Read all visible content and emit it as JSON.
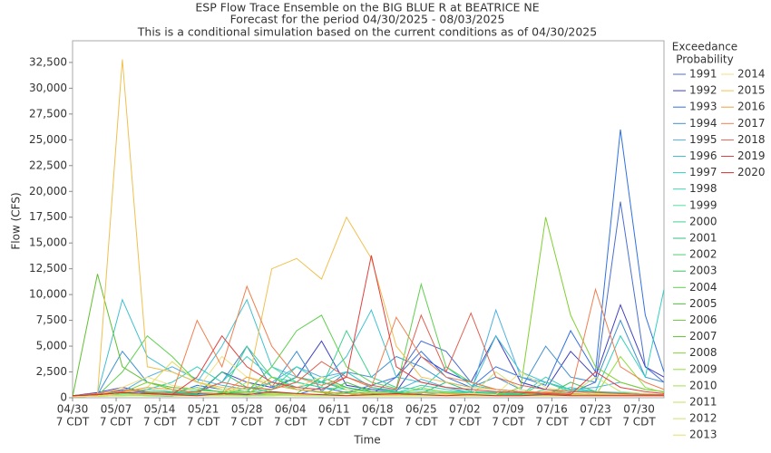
{
  "chart_data": {
    "type": "line",
    "title": "ESP Flow Trace Ensemble on the BIG BLUE R at BEATRICE NE",
    "subtitle": "Forecast for the period 04/30/2025 - 08/03/2025",
    "subtitle2": "This is a conditional simulation based on the current conditions as of 04/30/2025",
    "x_label": "Time",
    "y_label": "Flow (CFS)",
    "legend_title": [
      "Exceedance",
      "Probability"
    ],
    "xtick_sublabel": "7 CDT",
    "x": [
      "04/30",
      "05/04",
      "05/08",
      "05/12",
      "05/16",
      "05/20",
      "05/24",
      "05/28",
      "06/01",
      "06/05",
      "06/09",
      "06/13",
      "06/17",
      "06/21",
      "06/25",
      "06/29",
      "07/03",
      "07/07",
      "07/11",
      "07/15",
      "07/19",
      "07/23",
      "07/27",
      "07/31",
      "08/03"
    ],
    "xlim": [
      "04/30",
      "08/03"
    ],
    "xticks": [
      "04/30",
      "05/07",
      "05/14",
      "05/21",
      "05/28",
      "06/04",
      "06/11",
      "06/18",
      "06/25",
      "07/02",
      "07/09",
      "07/16",
      "07/23",
      "07/30"
    ],
    "ylim": [
      0,
      34600
    ],
    "yticks": [
      0,
      {
        "value": 2500,
        "label": "2,500"
      },
      {
        "value": 5000,
        "label": "5,000"
      },
      {
        "value": 7500,
        "label": "7,500"
      },
      {
        "value": 10000,
        "label": "10,000"
      },
      {
        "value": 12500,
        "label": "12,500"
      },
      {
        "value": 15000,
        "label": "15,000"
      },
      {
        "value": 17500,
        "label": "17,500"
      },
      {
        "value": 20000,
        "label": "20,000"
      },
      {
        "value": 22500,
        "label": "22,500"
      },
      {
        "value": 25000,
        "label": "25,000"
      },
      {
        "value": 27500,
        "label": "27,500"
      },
      {
        "value": 30000,
        "label": "30,000"
      },
      {
        "value": 32500,
        "label": "32,500"
      }
    ],
    "series": [
      {
        "name": "1991",
        "color": "#4a6fd1",
        "values": [
          200,
          150,
          300,
          200,
          150,
          400,
          300,
          200,
          500,
          300,
          200,
          400,
          300,
          2000,
          5500,
          4500,
          1500,
          800,
          600,
          300,
          500,
          1500,
          19000,
          3000,
          1500
        ]
      },
      {
        "name": "1992",
        "color": "#4040c0",
        "values": [
          200,
          500,
          1000,
          600,
          400,
          300,
          2500,
          1500,
          1000,
          2000,
          5500,
          1200,
          800,
          600,
          4000,
          2500,
          1500,
          6000,
          1500,
          800,
          4500,
          2000,
          9000,
          3000,
          2000
        ]
      },
      {
        "name": "1993",
        "color": "#3070e0",
        "values": [
          200,
          400,
          700,
          500,
          300,
          1200,
          800,
          600,
          400,
          300,
          1000,
          500,
          1200,
          2000,
          4500,
          2000,
          1000,
          3000,
          2000,
          1200,
          6500,
          2500,
          26000,
          8000,
          2500
        ]
      },
      {
        "name": "1994",
        "color": "#4090d0",
        "values": [
          200,
          300,
          4500,
          1500,
          800,
          500,
          1500,
          5000,
          1000,
          4500,
          600,
          2500,
          2000,
          4000,
          3000,
          1500,
          1000,
          2000,
          800,
          5000,
          2000,
          1500,
          7500,
          2000,
          1500
        ]
      },
      {
        "name": "1995",
        "color": "#50b0e0",
        "values": [
          200,
          300,
          600,
          2000,
          3000,
          1800,
          1200,
          800,
          1500,
          3000,
          2000,
          2500,
          1000,
          700,
          1800,
          1000,
          500,
          8500,
          2000,
          1500,
          800,
          1000,
          1500,
          800,
          600
        ]
      },
      {
        "name": "1996",
        "color": "#40c0d0",
        "values": [
          200,
          400,
          9500,
          4000,
          2500,
          1500,
          5000,
          9500,
          3000,
          2000,
          1500,
          4000,
          8500,
          2000,
          1500,
          1000,
          800,
          6000,
          2500,
          1500,
          800,
          600,
          500,
          400,
          300
        ]
      },
      {
        "name": "1997",
        "color": "#30d0c0",
        "values": [
          200,
          300,
          500,
          800,
          1500,
          3000,
          1500,
          4000,
          2000,
          1000,
          1500,
          2500,
          1000,
          500,
          800,
          3000,
          1200,
          800,
          600,
          400,
          1000,
          600,
          6000,
          2000,
          10500
        ]
      },
      {
        "name": "1998",
        "color": "#40d0b0",
        "values": [
          150,
          200,
          300,
          400,
          600,
          1000,
          500,
          400,
          800,
          3000,
          1500,
          1000,
          600,
          500,
          1200,
          800,
          500,
          400,
          300,
          2000,
          700,
          500,
          400,
          300,
          300
        ]
      },
      {
        "name": "1999",
        "color": "#50e0a0",
        "values": [
          150,
          200,
          400,
          300,
          500,
          700,
          600,
          500,
          3000,
          1500,
          1000,
          800,
          500,
          400,
          600,
          500,
          400,
          300,
          500,
          400,
          300,
          200,
          300,
          200,
          200
        ]
      },
      {
        "name": "2000",
        "color": "#40d090",
        "values": [
          150,
          250,
          500,
          800,
          600,
          500,
          400,
          5000,
          2000,
          1500,
          1000,
          6500,
          2000,
          1000,
          800,
          600,
          500,
          400,
          300,
          1500,
          600,
          400,
          300,
          200,
          200
        ]
      },
      {
        "name": "2001",
        "color": "#30c080",
        "values": [
          150,
          300,
          800,
          600,
          500,
          400,
          2500,
          1000,
          800,
          2000,
          1500,
          800,
          600,
          500,
          400,
          1500,
          600,
          500,
          400,
          300,
          200,
          200,
          200,
          200,
          200
        ]
      },
      {
        "name": "2002",
        "color": "#50d070",
        "values": [
          150,
          200,
          300,
          400,
          300,
          200,
          500,
          300,
          1500,
          800,
          500,
          400,
          1000,
          600,
          300,
          500,
          400,
          300,
          200,
          800,
          400,
          300,
          200,
          200,
          200
        ]
      },
      {
        "name": "2003",
        "color": "#40c060",
        "values": [
          150,
          200,
          300,
          500,
          400,
          300,
          200,
          1000,
          500,
          400,
          2000,
          1000,
          500,
          400,
          300,
          200,
          200,
          300,
          200,
          200,
          1500,
          600,
          400,
          300,
          200
        ]
      },
      {
        "name": "2004",
        "color": "#60d050",
        "values": [
          100,
          200,
          2500,
          6000,
          4000,
          1500,
          800,
          600,
          3000,
          6500,
          8000,
          3000,
          1500,
          900,
          11000,
          3000,
          1500,
          800,
          600,
          400,
          300,
          200,
          200,
          200,
          200
        ]
      },
      {
        "name": "2005",
        "color": "#50c040",
        "values": [
          100,
          150,
          300,
          400,
          300,
          200,
          300,
          200,
          200,
          300,
          200,
          1500,
          600,
          400,
          300,
          200,
          200,
          200,
          300,
          200,
          200,
          200,
          200,
          200,
          200
        ]
      },
      {
        "name": "2006",
        "color": "#70d040",
        "values": [
          100,
          150,
          200,
          300,
          200,
          200,
          300,
          200,
          400,
          300,
          200,
          200,
          500,
          300,
          200,
          200,
          200,
          200,
          200,
          200,
          300,
          200,
          200,
          200,
          200
        ]
      },
      {
        "name": "2007",
        "color": "#60c030",
        "values": [
          100,
          12000,
          3000,
          1500,
          1000,
          800,
          600,
          500,
          400,
          300,
          300,
          600,
          400,
          300,
          300,
          300,
          200,
          200,
          200,
          200,
          200,
          200,
          200,
          200,
          200
        ]
      },
      {
        "name": "2008",
        "color": "#80d030",
        "values": [
          100,
          200,
          500,
          1500,
          800,
          500,
          400,
          300,
          2000,
          800,
          500,
          400,
          300,
          200,
          200,
          200,
          200,
          200,
          1000,
          17500,
          8000,
          3000,
          1500,
          800,
          600
        ]
      },
      {
        "name": "2009",
        "color": "#90e040",
        "values": [
          100,
          150,
          300,
          200,
          300,
          200,
          200,
          200,
          300,
          200,
          200,
          400,
          300,
          200,
          200,
          200,
          300,
          200,
          200,
          200,
          200,
          200,
          4000,
          1000,
          500
        ]
      },
      {
        "name": "2010",
        "color": "#a0e050",
        "values": [
          100,
          150,
          200,
          200,
          200,
          200,
          200,
          200,
          300,
          200,
          200,
          200,
          200,
          200,
          1000,
          500,
          300,
          200,
          200,
          200,
          200,
          200,
          200,
          200,
          200
        ]
      },
      {
        "name": "2011",
        "color": "#c0e060",
        "values": [
          100,
          150,
          200,
          300,
          200,
          200,
          200,
          1500,
          600,
          400,
          300,
          200,
          200,
          200,
          200,
          200,
          300,
          200,
          200,
          200,
          300,
          200,
          200,
          200,
          200
        ]
      },
      {
        "name": "2012",
        "color": "#d0e070",
        "values": [
          100,
          150,
          300,
          400,
          300,
          200,
          200,
          300,
          200,
          200,
          200,
          200,
          200,
          200,
          200,
          200,
          200,
          2500,
          800,
          400,
          300,
          2000,
          600,
          400,
          300
        ]
      },
      {
        "name": "2013",
        "color": "#e0e060",
        "values": [
          100,
          150,
          500,
          1000,
          3500,
          1500,
          800,
          500,
          400,
          300,
          300,
          200,
          200,
          200,
          200,
          200,
          200,
          200,
          200,
          200,
          200,
          200,
          200,
          200,
          200
        ]
      },
      {
        "name": "2014",
        "color": "#f0e080",
        "values": [
          150,
          200,
          1000,
          2000,
          1200,
          800,
          4000,
          2000,
          1500,
          1000,
          2000,
          800,
          500,
          400,
          300,
          300,
          400,
          300,
          2500,
          1000,
          600,
          400,
          300,
          200,
          200
        ]
      },
      {
        "name": "2015",
        "color": "#f0c050",
        "values": [
          200,
          300,
          32800,
          3000,
          2500,
          1500,
          1000,
          800,
          12500,
          13500,
          11500,
          17500,
          13500,
          5000,
          2000,
          1500,
          1000,
          800,
          600,
          500,
          400,
          300,
          300,
          300,
          300
        ]
      },
      {
        "name": "2016",
        "color": "#f0a040",
        "values": [
          200,
          300,
          600,
          1000,
          800,
          500,
          400,
          2000,
          1200,
          800,
          600,
          400,
          300,
          300,
          500,
          400,
          300,
          200,
          200,
          600,
          400,
          300,
          200,
          200,
          200
        ]
      },
      {
        "name": "2017",
        "color": "#f08050",
        "values": [
          200,
          400,
          800,
          600,
          400,
          7500,
          3000,
          10800,
          5000,
          2000,
          1200,
          2000,
          1000,
          7800,
          4000,
          2000,
          1500,
          800,
          600,
          500,
          400,
          10500,
          3000,
          1500,
          800
        ]
      },
      {
        "name": "2018",
        "color": "#e06050",
        "values": [
          200,
          300,
          500,
          400,
          300,
          600,
          1500,
          1000,
          800,
          1500,
          3500,
          2000,
          1200,
          800,
          8000,
          2500,
          8200,
          2000,
          1200,
          800,
          600,
          500,
          400,
          300,
          300
        ]
      },
      {
        "name": "2019",
        "color": "#e04040",
        "values": [
          200,
          300,
          500,
          400,
          300,
          2000,
          6000,
          3000,
          1500,
          1000,
          800,
          2000,
          13800,
          3000,
          1500,
          1000,
          800,
          600,
          500,
          400,
          300,
          2500,
          1000,
          600,
          400
        ]
      },
      {
        "name": "2020",
        "color": "#d03030",
        "values": [
          200,
          300,
          500,
          400,
          300,
          200,
          400,
          300,
          600,
          400,
          300,
          200,
          300,
          400,
          300,
          200,
          300,
          200,
          200,
          300,
          200,
          200,
          200,
          200,
          200
        ]
      }
    ]
  }
}
